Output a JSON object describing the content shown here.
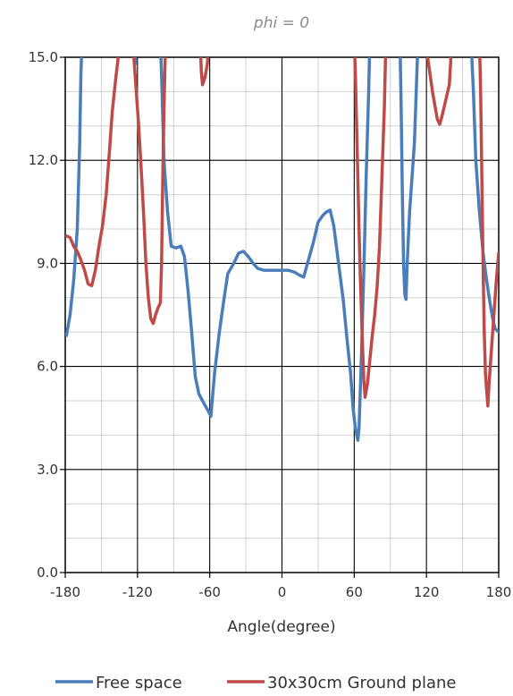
{
  "chart_data": {
    "type": "line",
    "title": "phi = 0",
    "xlabel": "Angle(degree)",
    "ylabel": "",
    "xlim": [
      -180,
      180
    ],
    "ylim": [
      0,
      15
    ],
    "x_ticks": [
      -180,
      -120,
      -60,
      0,
      60,
      120,
      180
    ],
    "x_tick_labels": [
      "-180",
      "-120",
      "-60",
      "0",
      "60",
      "120",
      "180"
    ],
    "y_ticks": [
      0,
      3,
      6,
      9,
      12,
      15
    ],
    "y_tick_labels": [
      "0.0",
      "3.0",
      "6.0",
      "9.0",
      "12.0",
      "15.0"
    ],
    "grid": true,
    "legend_position": "bottom",
    "series": [
      {
        "name": "Free space",
        "color": "#4a7ebb",
        "points": [
          [
            -179,
            6.9
          ],
          [
            -176,
            7.5
          ],
          [
            -173,
            8.5
          ],
          [
            -170,
            10.0
          ],
          [
            -168,
            12.5
          ],
          [
            -167,
            14.5
          ],
          [
            -166,
            15.5
          ],
          [
            -124,
            15.5
          ],
          [
            -123,
            15.0
          ],
          [
            -122,
            14.8
          ],
          [
            -121,
            15.5
          ],
          [
            -101,
            15.5
          ],
          [
            -100,
            14.5
          ],
          [
            -98,
            12.0
          ],
          [
            -95,
            10.5
          ],
          [
            -92,
            9.5
          ],
          [
            -88,
            9.45
          ],
          [
            -84,
            9.5
          ],
          [
            -81,
            9.2
          ],
          [
            -78,
            8.2
          ],
          [
            -75,
            7.0
          ],
          [
            -72,
            5.7
          ],
          [
            -69,
            5.2
          ],
          [
            -66,
            5.0
          ],
          [
            -62,
            4.75
          ],
          [
            -59,
            4.55
          ],
          [
            -56,
            5.8
          ],
          [
            -52,
            7.0
          ],
          [
            -48,
            8.0
          ],
          [
            -45,
            8.7
          ],
          [
            -40,
            9.0
          ],
          [
            -36,
            9.3
          ],
          [
            -32,
            9.35
          ],
          [
            -28,
            9.2
          ],
          [
            -24,
            9.0
          ],
          [
            -20,
            8.85
          ],
          [
            -15,
            8.8
          ],
          [
            -10,
            8.8
          ],
          [
            -5,
            8.8
          ],
          [
            0,
            8.8
          ],
          [
            5,
            8.8
          ],
          [
            10,
            8.75
          ],
          [
            15,
            8.65
          ],
          [
            18,
            8.6
          ],
          [
            22,
            9.1
          ],
          [
            26,
            9.6
          ],
          [
            30,
            10.2
          ],
          [
            34,
            10.4
          ],
          [
            37,
            10.5
          ],
          [
            40,
            10.55
          ],
          [
            43,
            10.1
          ],
          [
            47,
            9.0
          ],
          [
            51,
            7.9
          ],
          [
            54,
            6.8
          ],
          [
            57,
            5.8
          ],
          [
            59,
            4.8
          ],
          [
            61,
            4.2
          ],
          [
            63,
            3.85
          ],
          [
            64,
            4.2
          ],
          [
            66,
            6.3
          ],
          [
            68,
            8.8
          ],
          [
            70,
            11.6
          ],
          [
            72,
            14.0
          ],
          [
            73,
            15.5
          ],
          [
            98,
            15.5
          ],
          [
            99,
            13.5
          ],
          [
            100,
            11.0
          ],
          [
            101,
            9.0
          ],
          [
            102,
            8.1
          ],
          [
            103,
            7.95
          ],
          [
            104,
            9.0
          ],
          [
            106,
            10.5
          ],
          [
            108,
            11.5
          ],
          [
            110,
            12.5
          ],
          [
            111,
            13.5
          ],
          [
            112,
            14.5
          ],
          [
            113,
            15.5
          ],
          [
            157,
            15.5
          ],
          [
            159,
            14.0
          ],
          [
            161,
            12.0
          ],
          [
            164,
            10.5
          ],
          [
            167,
            9.3
          ],
          [
            170,
            8.5
          ],
          [
            173,
            7.8
          ],
          [
            175,
            7.4
          ],
          [
            177,
            7.1
          ],
          [
            180,
            7.0
          ]
        ]
      },
      {
        "name": "30x30cm Ground plane",
        "color": "#be4b48",
        "points": [
          [
            -179,
            9.8
          ],
          [
            -176,
            9.75
          ],
          [
            -173,
            9.5
          ],
          [
            -170,
            9.35
          ],
          [
            -167,
            9.1
          ],
          [
            -164,
            8.8
          ],
          [
            -161,
            8.4
          ],
          [
            -158,
            8.35
          ],
          [
            -155,
            8.8
          ],
          [
            -152,
            9.5
          ],
          [
            -149,
            10.1
          ],
          [
            -146,
            11.0
          ],
          [
            -143,
            12.4
          ],
          [
            -141,
            13.4
          ],
          [
            -138,
            14.4
          ],
          [
            -136,
            15.0
          ],
          [
            -135,
            15.5
          ],
          [
            -124,
            15.5
          ],
          [
            -123,
            15.0
          ],
          [
            -121,
            14.0
          ],
          [
            -119,
            13.0
          ],
          [
            -117,
            11.8
          ],
          [
            -115,
            10.5
          ],
          [
            -113,
            9.0
          ],
          [
            -111,
            8.0
          ],
          [
            -109,
            7.4
          ],
          [
            -107,
            7.25
          ],
          [
            -105,
            7.5
          ],
          [
            -103,
            7.7
          ],
          [
            -101,
            7.85
          ],
          [
            -100,
            9.0
          ],
          [
            -99,
            11.5
          ],
          [
            -98,
            13.5
          ],
          [
            -97,
            15.0
          ],
          [
            -96.5,
            15.5
          ],
          [
            -68,
            15.5
          ],
          [
            -67,
            14.6
          ],
          [
            -66,
            14.2
          ],
          [
            -64,
            14.4
          ],
          [
            -62,
            14.8
          ],
          [
            -61,
            15.2
          ],
          [
            -60.5,
            15.5
          ],
          [
            60,
            15.5
          ],
          [
            61,
            14.5
          ],
          [
            62,
            13.0
          ],
          [
            63,
            11.5
          ],
          [
            64,
            10.0
          ],
          [
            65,
            8.7
          ],
          [
            66,
            7.6
          ],
          [
            67,
            6.5
          ],
          [
            68,
            5.6
          ],
          [
            69,
            5.1
          ],
          [
            71,
            5.5
          ],
          [
            73,
            6.2
          ],
          [
            75,
            6.9
          ],
          [
            77,
            7.5
          ],
          [
            79,
            8.3
          ],
          [
            81,
            9.5
          ],
          [
            83,
            11.5
          ],
          [
            85,
            13.5
          ],
          [
            86,
            15.0
          ],
          [
            86.5,
            15.5
          ],
          [
            120,
            15.5
          ],
          [
            121,
            15.0
          ],
          [
            123,
            14.5
          ],
          [
            125,
            14.0
          ],
          [
            127,
            13.6
          ],
          [
            129,
            13.2
          ],
          [
            131,
            13.05
          ],
          [
            133,
            13.3
          ],
          [
            135,
            13.6
          ],
          [
            137,
            13.9
          ],
          [
            139,
            14.2
          ],
          [
            140,
            14.8
          ],
          [
            141,
            15.5
          ],
          [
            164,
            15.5
          ],
          [
            165,
            14.0
          ],
          [
            166,
            11.5
          ],
          [
            167,
            9.0
          ],
          [
            168,
            7.0
          ],
          [
            169,
            5.8
          ],
          [
            170,
            5.3
          ],
          [
            171,
            4.85
          ],
          [
            172,
            5.5
          ],
          [
            174,
            6.5
          ],
          [
            176,
            7.5
          ],
          [
            178,
            8.5
          ],
          [
            180,
            9.3
          ]
        ]
      }
    ]
  }
}
